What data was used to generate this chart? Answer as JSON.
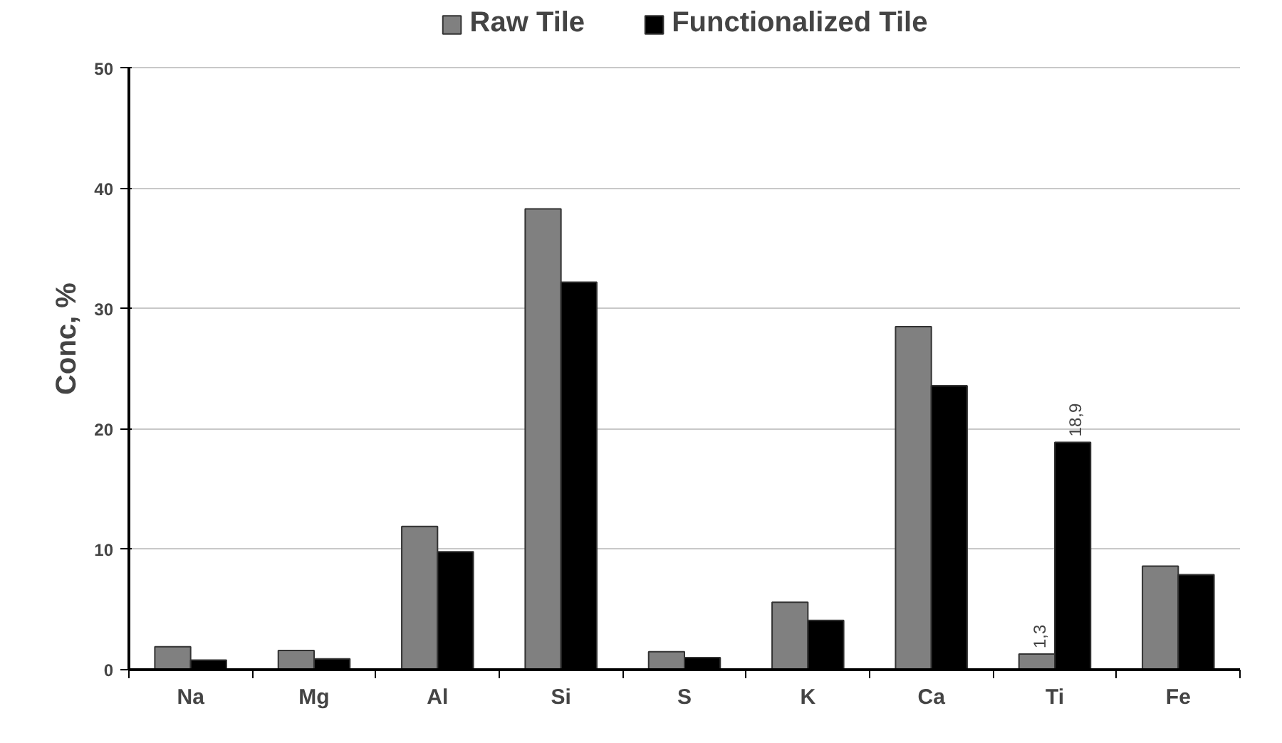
{
  "chart_data": {
    "type": "bar",
    "ylabel": "Conc, %",
    "categories": [
      "Na",
      "Mg",
      "Al",
      "Si",
      "S",
      "K",
      "Ca",
      "Ti",
      "Fe"
    ],
    "series": [
      {
        "name": "Raw Tile",
        "color": "#808080",
        "values": [
          1.9,
          1.6,
          11.9,
          38.3,
          1.5,
          5.6,
          28.5,
          1.3,
          8.6
        ],
        "value_labels": [
          null,
          null,
          null,
          null,
          null,
          null,
          null,
          "1,3",
          null
        ]
      },
      {
        "name": "Functionalized Tile",
        "color": "#000000",
        "values": [
          0.8,
          0.9,
          9.8,
          32.2,
          1.0,
          4.1,
          23.6,
          18.9,
          7.9
        ],
        "value_labels": [
          null,
          null,
          null,
          null,
          null,
          null,
          null,
          "18,9",
          null
        ]
      }
    ],
    "ylim": [
      0,
      50
    ],
    "yticks": [
      0,
      10,
      20,
      30,
      40,
      50
    ],
    "grid": "y",
    "legend": "top"
  }
}
